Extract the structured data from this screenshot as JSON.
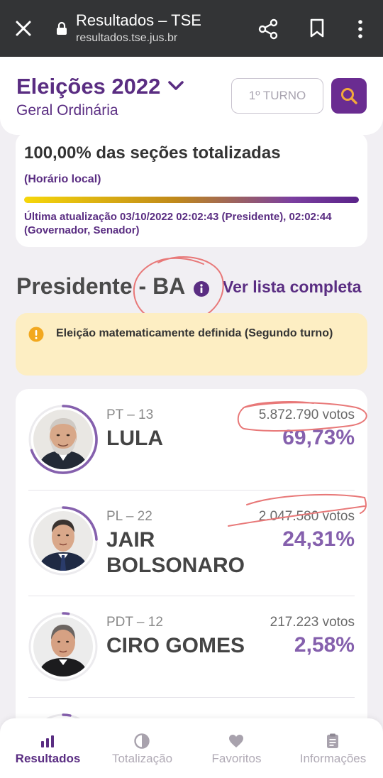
{
  "browser": {
    "title": "Resultados – TSE",
    "url": "resultados.tse.jus.br"
  },
  "header": {
    "title": "Eleições 2022",
    "subtitle": "Geral Ordinária",
    "turno_label": "1º TURNO"
  },
  "status": {
    "sections_totalized": "100,00% das seções totalizadas",
    "local_time": "(Horário local)",
    "progress_percent": 100,
    "last_update": "Última atualização 03/10/2022 02:02:43 (Presidente), 02:02:44 (Governador, Senador)"
  },
  "section": {
    "title": "Presidente - BA",
    "full_list_link": "Ver lista completa"
  },
  "alert": {
    "text": "Eleição matematicamente definida (Segundo turno)"
  },
  "candidates": [
    {
      "party": "PT – 13",
      "name": "LULA",
      "votes": "5.872.790 votos",
      "percent": "69,73%",
      "share": 0.6973
    },
    {
      "party": "PL – 22",
      "name": "JAIR BOLSONARO",
      "votes": "2.047.580 votos",
      "percent": "24,31%",
      "share": 0.2431
    },
    {
      "party": "PDT – 12",
      "name": "CIRO GOMES",
      "votes": "217.223 votos",
      "percent": "2,58%",
      "share": 0.0258
    }
  ],
  "colors": {
    "brand_purple": "#5a2d82",
    "percent_purple": "#8560ad",
    "alert_bg": "#fdeec3",
    "search_accent": "#f2a93b"
  },
  "nav": {
    "items": [
      {
        "label": "Resultados",
        "icon": "bar-chart-icon",
        "active": true
      },
      {
        "label": "Totalização",
        "icon": "half-circle-icon",
        "active": false
      },
      {
        "label": "Favoritos",
        "icon": "heart-icon",
        "active": false
      },
      {
        "label": "Informações",
        "icon": "clipboard-icon",
        "active": false
      }
    ]
  }
}
